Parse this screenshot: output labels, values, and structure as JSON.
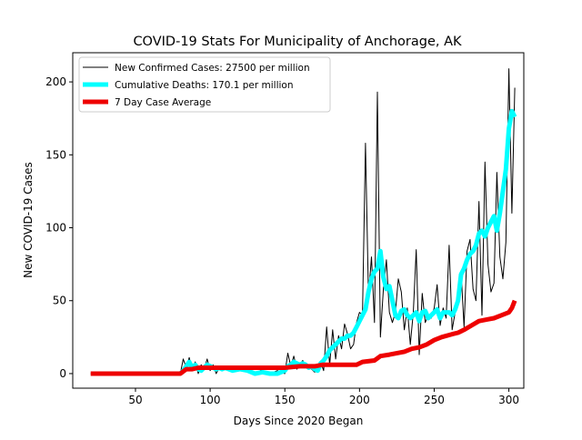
{
  "chart_data": {
    "type": "line",
    "title": "COVID-19 Stats For Municipality of Anchorage, AK",
    "xlabel": "Days Since 2020 Began",
    "ylabel": "New COVID-19 Cases",
    "xlim": [
      8,
      310
    ],
    "ylim": [
      -10,
      220
    ],
    "xticks": [
      50,
      100,
      150,
      200,
      250,
      300
    ],
    "yticks": [
      0,
      50,
      100,
      150,
      200
    ],
    "grid": false,
    "legend_position": "top-left",
    "series": [
      {
        "name": "New Confirmed Cases: 27500 per million",
        "color": "#000000",
        "style": "thin",
        "x": [
          20,
          30,
          40,
          50,
          60,
          70,
          80,
          82,
          84,
          86,
          88,
          90,
          92,
          94,
          96,
          98,
          100,
          102,
          104,
          106,
          108,
          110,
          115,
          120,
          125,
          130,
          135,
          140,
          145,
          150,
          152,
          154,
          156,
          158,
          160,
          162,
          164,
          166,
          168,
          170,
          172,
          174,
          176,
          178,
          180,
          182,
          184,
          186,
          188,
          190,
          192,
          194,
          196,
          198,
          200,
          202,
          204,
          206,
          208,
          210,
          212,
          214,
          216,
          218,
          220,
          222,
          224,
          226,
          228,
          230,
          232,
          234,
          236,
          238,
          240,
          242,
          244,
          246,
          248,
          250,
          252,
          254,
          256,
          258,
          260,
          262,
          264,
          266,
          268,
          270,
          272,
          274,
          276,
          278,
          280,
          282,
          284,
          286,
          288,
          290,
          292,
          294,
          296,
          298,
          300,
          302,
          304
        ],
        "y": [
          0,
          0,
          0,
          0,
          0,
          0,
          0,
          10,
          4,
          11,
          2,
          8,
          0,
          6,
          3,
          10,
          2,
          6,
          0,
          4,
          2,
          5,
          3,
          4,
          1,
          4,
          2,
          0,
          2,
          0,
          14,
          5,
          12,
          3,
          6,
          9,
          4,
          5,
          3,
          1,
          4,
          8,
          2,
          32,
          6,
          30,
          10,
          26,
          17,
          34,
          27,
          17,
          20,
          35,
          42,
          40,
          158,
          53,
          80,
          35,
          193,
          25,
          58,
          78,
          42,
          35,
          42,
          65,
          56,
          30,
          45,
          20,
          42,
          85,
          13,
          55,
          35,
          40,
          38,
          45,
          61,
          33,
          45,
          38,
          88,
          30,
          42,
          50,
          70,
          32,
          84,
          92,
          58,
          50,
          118,
          40,
          145,
          75,
          56,
          62,
          138,
          80,
          65,
          90,
          209,
          110,
          196
        ]
      },
      {
        "name": "Cumulative Deaths: 170.1 per million",
        "color": "#00ffff",
        "style": "thick",
        "x": [
          80,
          82,
          84,
          86,
          88,
          90,
          92,
          94,
          96,
          98,
          100,
          102,
          104,
          106,
          108,
          110,
          115,
          120,
          125,
          130,
          135,
          140,
          145,
          150,
          152,
          154,
          156,
          158,
          160,
          162,
          164,
          166,
          168,
          170,
          172,
          174,
          176,
          178,
          180,
          182,
          184,
          186,
          188,
          190,
          192,
          194,
          196,
          198,
          200,
          202,
          204,
          206,
          208,
          210,
          212,
          214,
          216,
          218,
          220,
          222,
          224,
          226,
          228,
          230,
          232,
          234,
          236,
          238,
          240,
          242,
          244,
          246,
          248,
          250,
          252,
          254,
          256,
          258,
          260,
          262,
          264,
          266,
          268,
          270,
          272,
          274,
          276,
          278,
          280,
          282,
          284,
          286,
          288,
          290,
          292,
          294,
          296,
          298,
          300,
          302,
          304
        ],
        "y": [
          0,
          2,
          5,
          8,
          4,
          6,
          3,
          2,
          4,
          6,
          5,
          4,
          3,
          4,
          3,
          4,
          2,
          3,
          2,
          0,
          1,
          0,
          0,
          2,
          5,
          6,
          8,
          7,
          6,
          7,
          6,
          4,
          5,
          3,
          2,
          7,
          9,
          12,
          16,
          18,
          20,
          22,
          24,
          24,
          26,
          26,
          28,
          32,
          36,
          40,
          44,
          56,
          65,
          70,
          72,
          84,
          66,
          58,
          60,
          50,
          40,
          38,
          43,
          44,
          40,
          38,
          40,
          42,
          36,
          42,
          43,
          38,
          40,
          42,
          44,
          38,
          42,
          42,
          42,
          40,
          44,
          50,
          68,
          72,
          78,
          82,
          84,
          88,
          96,
          98,
          94,
          100,
          104,
          108,
          98,
          110,
          125,
          140,
          168,
          180,
          176
        ]
      },
      {
        "name": "7 Day Case Average",
        "color": "#ee0000",
        "style": "thick",
        "x": [
          20,
          80,
          84,
          88,
          92,
          96,
          100,
          110,
          120,
          140,
          150,
          160,
          170,
          175,
          180,
          190,
          198,
          202,
          210,
          214,
          220,
          230,
          235,
          240,
          245,
          250,
          255,
          262,
          266,
          270,
          275,
          280,
          285,
          290,
          295,
          300,
          302,
          304
        ],
        "y": [
          0,
          0,
          3,
          3,
          4,
          4,
          4,
          4,
          4,
          4,
          4,
          5,
          5,
          6,
          6,
          6,
          6,
          8,
          9,
          12,
          13,
          15,
          17,
          18,
          20,
          23,
          25,
          27,
          28,
          30,
          33,
          36,
          37,
          38,
          40,
          42,
          45,
          50
        ]
      }
    ]
  }
}
